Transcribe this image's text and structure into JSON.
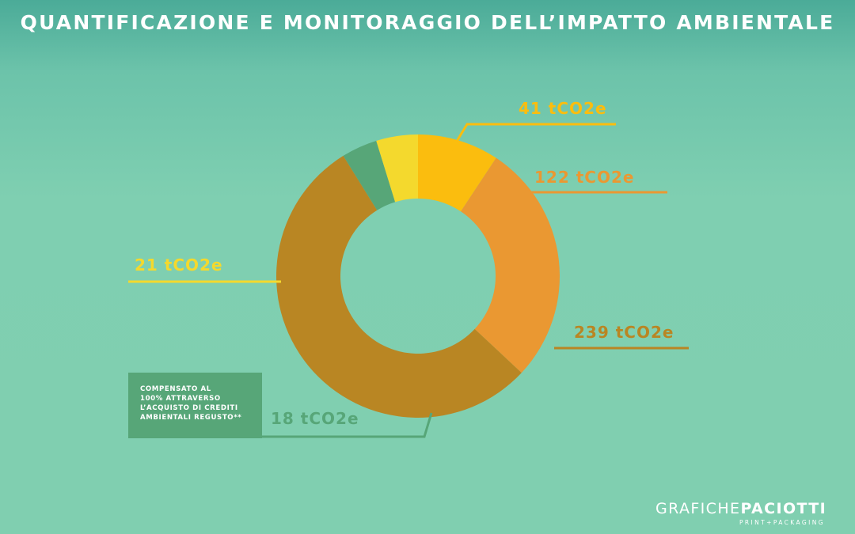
{
  "title": "QUANTIFICAZIONE E MONITORAGGIO DELL’IMPATTO AMBIENTALE",
  "chart_data": {
    "type": "pie",
    "donut": true,
    "slices": [
      {
        "label": "41 tCO2e",
        "value": 41,
        "color": "#fbbd0e"
      },
      {
        "label": "122 tCO2e",
        "value": 122,
        "color": "#ea9832"
      },
      {
        "label": "239 tCO2e",
        "value": 239,
        "color": "#b98623"
      },
      {
        "label": "18 tCO2e",
        "value": 18,
        "color": "#57a678"
      },
      {
        "label": "21 tCO2e",
        "value": 21,
        "color": "#f4d92d"
      }
    ]
  },
  "note": {
    "lines": [
      "COMPENSATO AL",
      "100% ATTRAVERSO",
      "L’ACQUISTO DI CREDITI",
      "AMBIENTALI REGUSTO**"
    ]
  },
  "logo": {
    "part1": "GRAFICHE",
    "part2": "PACIOTTI",
    "tagline": "PRINT+PACKAGING"
  }
}
